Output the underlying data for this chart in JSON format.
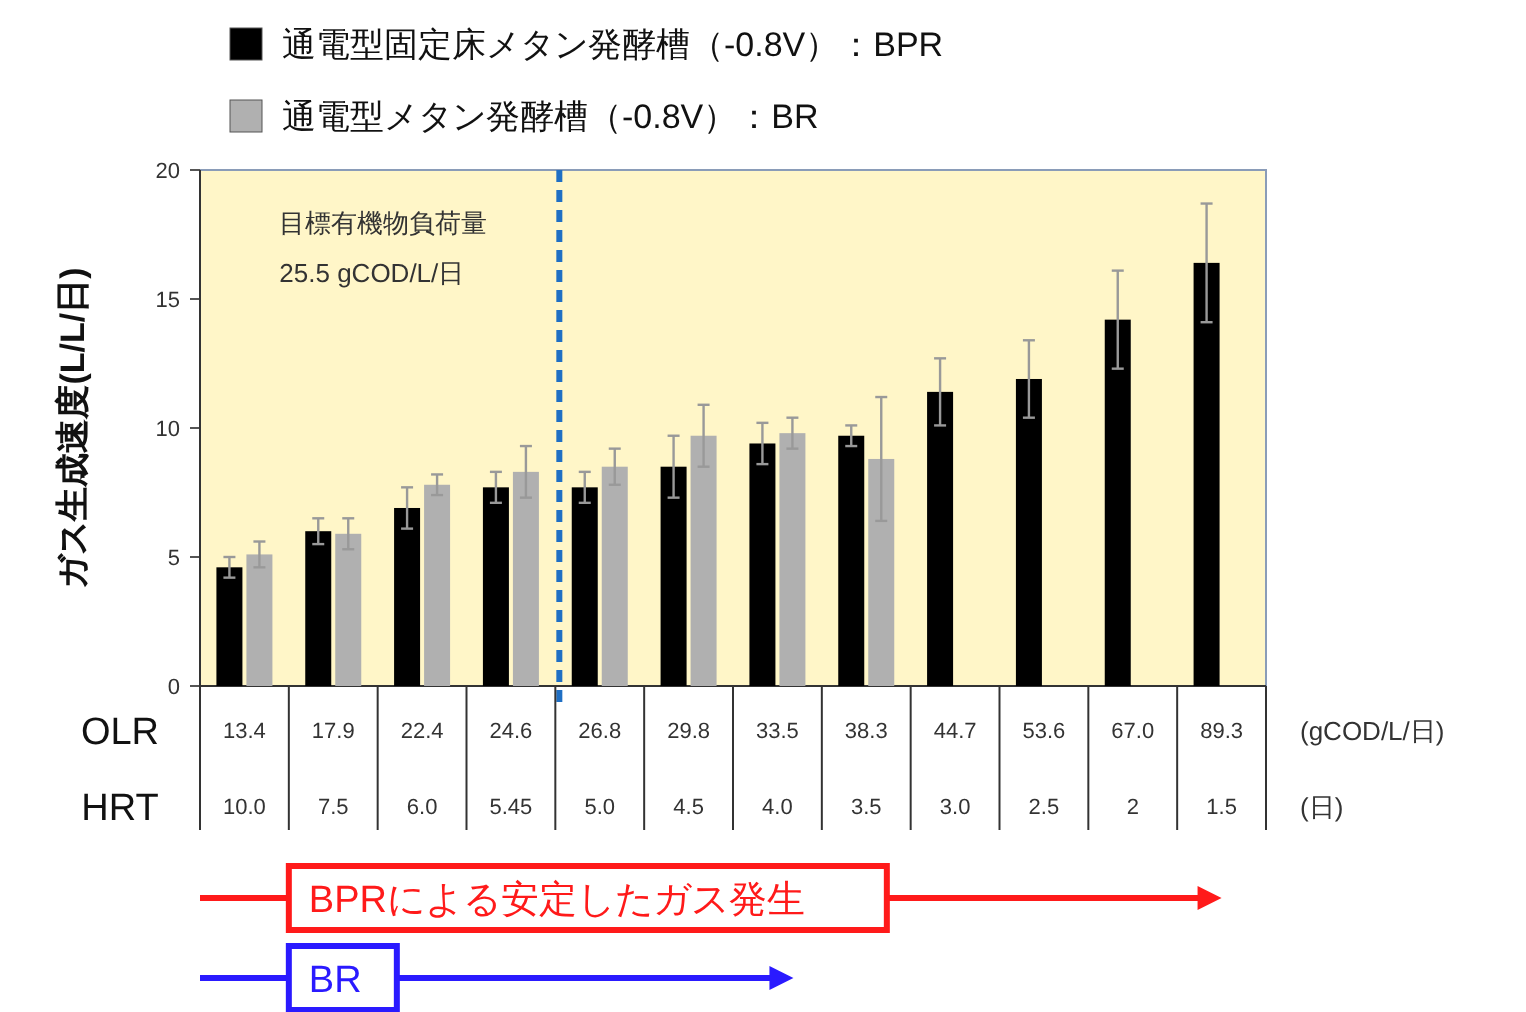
{
  "chart_data": {
    "type": "bar",
    "categories": [
      "13.4",
      "17.9",
      "22.4",
      "24.6",
      "26.8",
      "29.8",
      "33.5",
      "38.3",
      "44.7",
      "53.6",
      "67.0",
      "89.3"
    ],
    "xlabel": "OLR",
    "ylabel": "ガス生成速度(L/L/日)",
    "series": [
      {
        "name": "通電型固定床メタン発酵槽（-0.8V）：BPR",
        "color": "#000000",
        "values": [
          4.6,
          6.0,
          6.9,
          7.7,
          7.7,
          8.5,
          9.4,
          9.7,
          11.4,
          11.9,
          14.2,
          16.4
        ],
        "errors": [
          0.4,
          0.5,
          0.8,
          0.6,
          0.6,
          1.2,
          0.8,
          0.4,
          1.3,
          1.5,
          1.9,
          2.3
        ]
      },
      {
        "name": "通電型メタン発酵槽（-0.8V）：BR",
        "color": "#b0b0b0",
        "values": [
          5.1,
          5.9,
          7.8,
          8.3,
          8.5,
          9.7,
          9.8,
          8.8,
          null,
          null,
          null,
          null
        ],
        "errors": [
          0.5,
          0.6,
          0.4,
          1.0,
          0.7,
          1.2,
          0.6,
          2.4,
          null,
          null,
          null,
          null
        ]
      }
    ],
    "ylim": [
      0,
      20
    ],
    "yticks": [
      0,
      5,
      10,
      15,
      20
    ],
    "grid": false,
    "legend": "top",
    "annotations": [
      "(gCOD/L/日)",
      "HRT",
      "(日)",
      "10.0",
      "7.5",
      "6.0",
      "5.45",
      "5.0",
      "4.5",
      "4.0",
      "3.5",
      "3.0",
      "2.5",
      "2",
      "1.5",
      "目標有機物負荷量",
      "25.5 gCOD/L/日",
      "BPRによる安定したガス発生",
      "BR"
    ]
  }
}
